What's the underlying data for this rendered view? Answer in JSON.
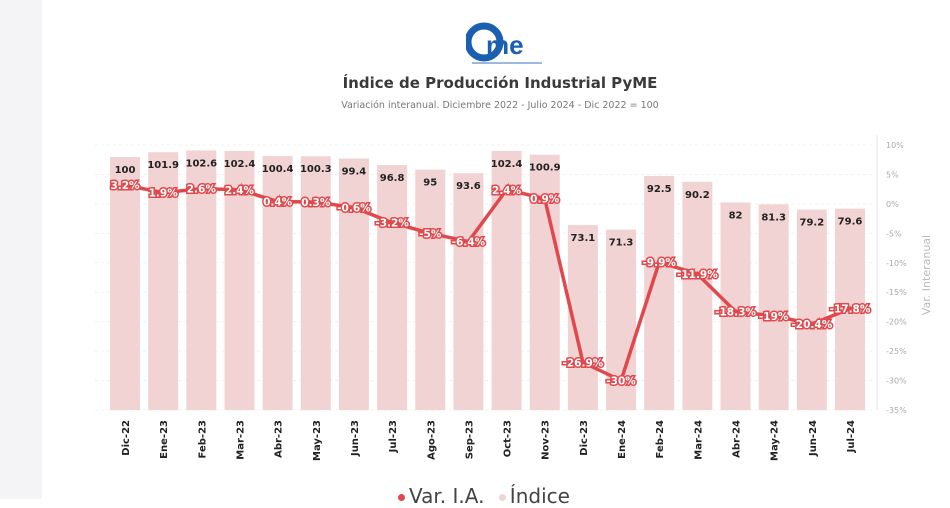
{
  "title": "Índice de Producción Industrial PyME",
  "subtitle": "Variación interanual. Diciembre 2022 - Julio 2024 - Dic 2022 = 100",
  "logo_text": "came",
  "chart_data": {
    "type": "bar+line",
    "title": "Índice de Producción Industrial PyME",
    "subtitle": "Variación interanual. Diciembre 2022 - Julio 2024 - Dic 2022 = 100",
    "categories": [
      "Dic-22",
      "Ene-23",
      "Feb-23",
      "Mar-23",
      "Abr-23",
      "May-23",
      "Jun-23",
      "Jul-23",
      "Ago-23",
      "Sep-23",
      "Oct-23",
      "Nov-23",
      "Dic-23",
      "Ene-24",
      "Feb-24",
      "Mar-24",
      "Abr-24",
      "May-24",
      "Jun-24",
      "Jul-24"
    ],
    "series": [
      {
        "name": "Índice",
        "type": "bar",
        "color": "#f2d3d3",
        "values": [
          100,
          101.9,
          102.6,
          102.4,
          100.4,
          100.3,
          99.4,
          96.8,
          95,
          93.6,
          102.4,
          100.9,
          73.1,
          71.3,
          92.5,
          90.2,
          82,
          81.3,
          79.2,
          79.6
        ],
        "labels": [
          "100",
          "101.9",
          "102.6",
          "102.4",
          "100.4",
          "100.3",
          "99.4",
          "96.8",
          "95",
          "93.6",
          "102.4",
          "100.9",
          "73.1",
          "71.3",
          "92.5",
          "90.2",
          "82",
          "81.3",
          "79.2",
          "79.6"
        ]
      },
      {
        "name": "Var. I.A.",
        "type": "line",
        "color": "#e0484c",
        "values": [
          3.2,
          1.9,
          2.6,
          2.4,
          0.4,
          0.3,
          -0.6,
          -3.2,
          -5,
          -6.4,
          2.4,
          0.9,
          -26.9,
          -30,
          -9.9,
          -11.9,
          -18.3,
          -19,
          -20.4,
          -17.8
        ],
        "labels": [
          "3.2%",
          "1.9%",
          "2.6%",
          "2.4%",
          "0.4%",
          "0.3%",
          "-0.6%",
          "-3.2%",
          "-5%",
          "-6.4%",
          "2.4%",
          "0.9%",
          "-26.9%",
          "-30%",
          "-9.9%",
          "-11.9%",
          "-18.3%",
          "-19%",
          "-20.4%",
          "-17.8%"
        ]
      }
    ],
    "y2label": "Var. Interanual",
    "y2lim": [
      -35,
      10
    ],
    "y2ticks": [
      "10%",
      "5%",
      "0%",
      "-5%",
      "-10%",
      "-15%",
      "-20%",
      "-25%",
      "-30%",
      "-35%"
    ],
    "y2tick_values": [
      10,
      5,
      0,
      -5,
      -10,
      -15,
      -20,
      -25,
      -30,
      -35
    ],
    "grid": true,
    "legend": "bottom",
    "legend_entries": [
      "Var. I.A.",
      "Índice"
    ]
  }
}
